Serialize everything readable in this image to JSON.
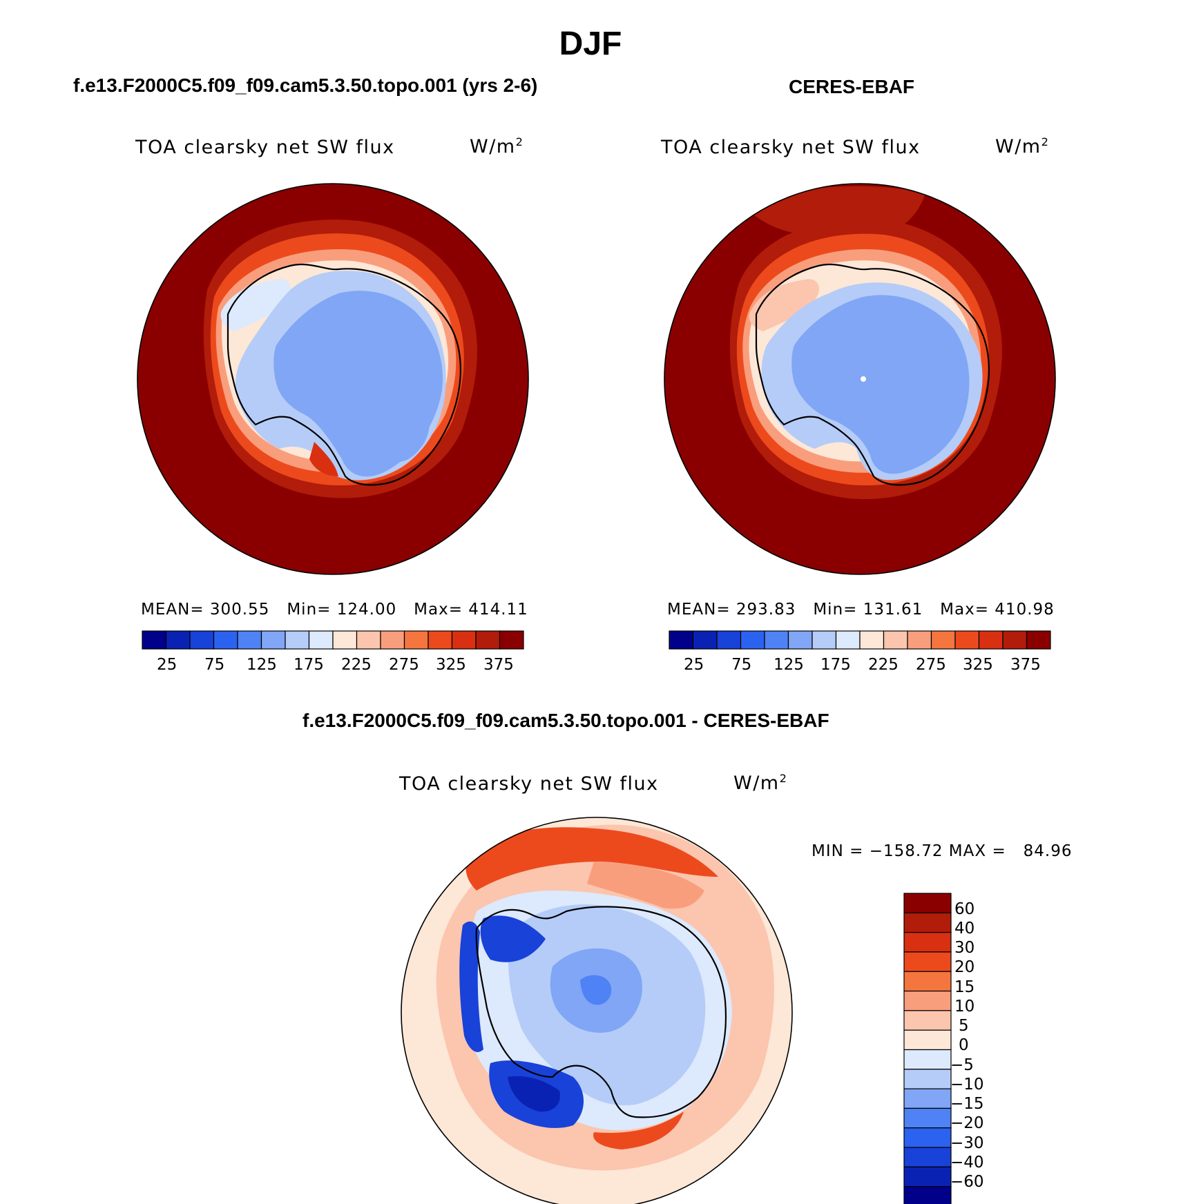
{
  "season": "DJF",
  "panels": [
    {
      "id": "model",
      "case_title": "f.e13.F2000C5.f09_f09.cam5.3.50.topo.001 (yrs 2-6)",
      "variable": "TOA clearsky net SW flux",
      "units": "W/m",
      "units_sup": "2",
      "stats": {
        "mean_label": "MEAN=",
        "mean": "300.55",
        "min_label": "Min=",
        "min": "124.00",
        "max_label": "Max=",
        "max": "414.11"
      },
      "colorbar_labels": [
        "25",
        "75",
        "125",
        "175",
        "225",
        "275",
        "325",
        "375"
      ]
    },
    {
      "id": "obs",
      "case_title": "CERES-EBAF",
      "variable": "TOA clearsky net SW flux",
      "units": "W/m",
      "units_sup": "2",
      "stats": {
        "mean_label": "MEAN=",
        "mean": "293.83",
        "min_label": "Min=",
        "min": "131.61",
        "max_label": "Max=",
        "max": "410.98"
      },
      "colorbar_labels": [
        "25",
        "75",
        "125",
        "175",
        "225",
        "275",
        "325",
        "375"
      ]
    }
  ],
  "diff": {
    "case_title": "f.e13.F2000C5.f09_f09.cam5.3.50.topo.001 - CERES-EBAF",
    "variable": "TOA clearsky net SW flux",
    "units": "W/m",
    "units_sup": "2",
    "stats": {
      "min_label": "MIN =",
      "min": "−158.72",
      "max_label": "MAX =",
      "max": "84.96"
    },
    "colorbar_labels": [
      "60",
      "40",
      "30",
      "20",
      "15",
      "10",
      "5",
      "0",
      "−5",
      "−10",
      "−15",
      "−20",
      "−30",
      "−40",
      "−60"
    ]
  },
  "palette_abs": [
    "#00008b",
    "#0a22b4",
    "#1842d8",
    "#2c62f0",
    "#4e82f5",
    "#80a6f5",
    "#b4ccf7",
    "#dde9fc",
    "#fde7d7",
    "#fbc5ae",
    "#f99e7d",
    "#f5753f",
    "#ec4a1d",
    "#d93012",
    "#b21c0a",
    "#8a0000"
  ],
  "palette_diff": [
    "#8a0000",
    "#b21c0a",
    "#d93012",
    "#ec4a1d",
    "#f5753f",
    "#f99e7d",
    "#fbc5ae",
    "#fde7d7",
    "#dde9fc",
    "#b4ccf7",
    "#80a6f5",
    "#4e82f5",
    "#2c62f0",
    "#1842d8",
    "#0a22b4",
    "#00008b"
  ]
}
